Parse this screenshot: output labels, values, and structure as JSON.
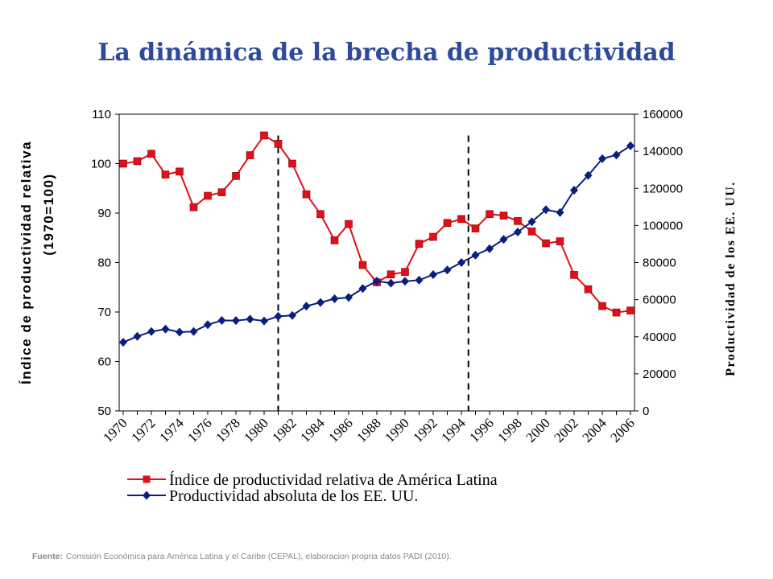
{
  "title": "La dinámica de la brecha de productividad",
  "source": {
    "label": "Fuente:",
    "text": "Comisión Económica para América Latina y el Caribe (CEPAL), elaboracion propria datos PADI (2010)."
  },
  "chart_data": {
    "type": "line",
    "x": [
      1970,
      1971,
      1972,
      1973,
      1974,
      1975,
      1976,
      1977,
      1978,
      1979,
      1980,
      1981,
      1982,
      1983,
      1984,
      1985,
      1986,
      1987,
      1988,
      1989,
      1990,
      1991,
      1992,
      1993,
      1994,
      1995,
      1996,
      1997,
      1998,
      1999,
      2000,
      2001,
      2002,
      2003,
      2004,
      2005,
      2006
    ],
    "x_tick_labels": [
      "1970",
      "1972",
      "1974",
      "1976",
      "1978",
      "1980",
      "1982",
      "1984",
      "1986",
      "1988",
      "1990",
      "1992",
      "1994",
      "1996",
      "1998",
      "2000",
      "2002",
      "2004",
      "2006"
    ],
    "ylabel_left_line1": "Índice de productividad relativa",
    "ylabel_left_line2": "(1970=100)",
    "ylabel_right": "Productividad de los EE. UU.",
    "y_left": {
      "min": 50,
      "max": 110,
      "ticks": [
        50,
        60,
        70,
        80,
        90,
        100,
        110
      ]
    },
    "y_right": {
      "min": 0,
      "max": 160000,
      "ticks": [
        0,
        20000,
        40000,
        60000,
        80000,
        100000,
        120000,
        140000,
        160000
      ]
    },
    "vertical_markers": [
      1981,
      1994.5
    ],
    "legend_position": "bottom",
    "series": [
      {
        "name": "Índice de productividad relativa de América Latina",
        "axis": "left",
        "color": "#e0101a",
        "marker": "square",
        "values": [
          100,
          100.5,
          102,
          97.8,
          98.4,
          91.2,
          93.5,
          94.2,
          97.5,
          101.7,
          105.7,
          104,
          100,
          93.8,
          89.8,
          84.5,
          87.8,
          79.5,
          76,
          77.6,
          78.1,
          83.8,
          85.2,
          88,
          88.8,
          86.9,
          89.8,
          89.5,
          88.4,
          86.3,
          83.9,
          84.3,
          77.5,
          74.6,
          71.2,
          69.9,
          70.3
        ]
      },
      {
        "name": "Productividad absoluta de los EE. UU.",
        "axis": "right",
        "color": "#0a1e7d",
        "marker": "diamond",
        "values": [
          37000,
          40200,
          42800,
          44100,
          42500,
          42800,
          46500,
          48800,
          48700,
          49500,
          48500,
          51000,
          51500,
          56500,
          58500,
          60500,
          61200,
          66000,
          70000,
          68900,
          69900,
          70500,
          73500,
          76000,
          80000,
          84000,
          87500,
          92500,
          96500,
          102000,
          108500,
          107000,
          119000,
          127000,
          136000,
          138000,
          143000
        ]
      }
    ]
  }
}
